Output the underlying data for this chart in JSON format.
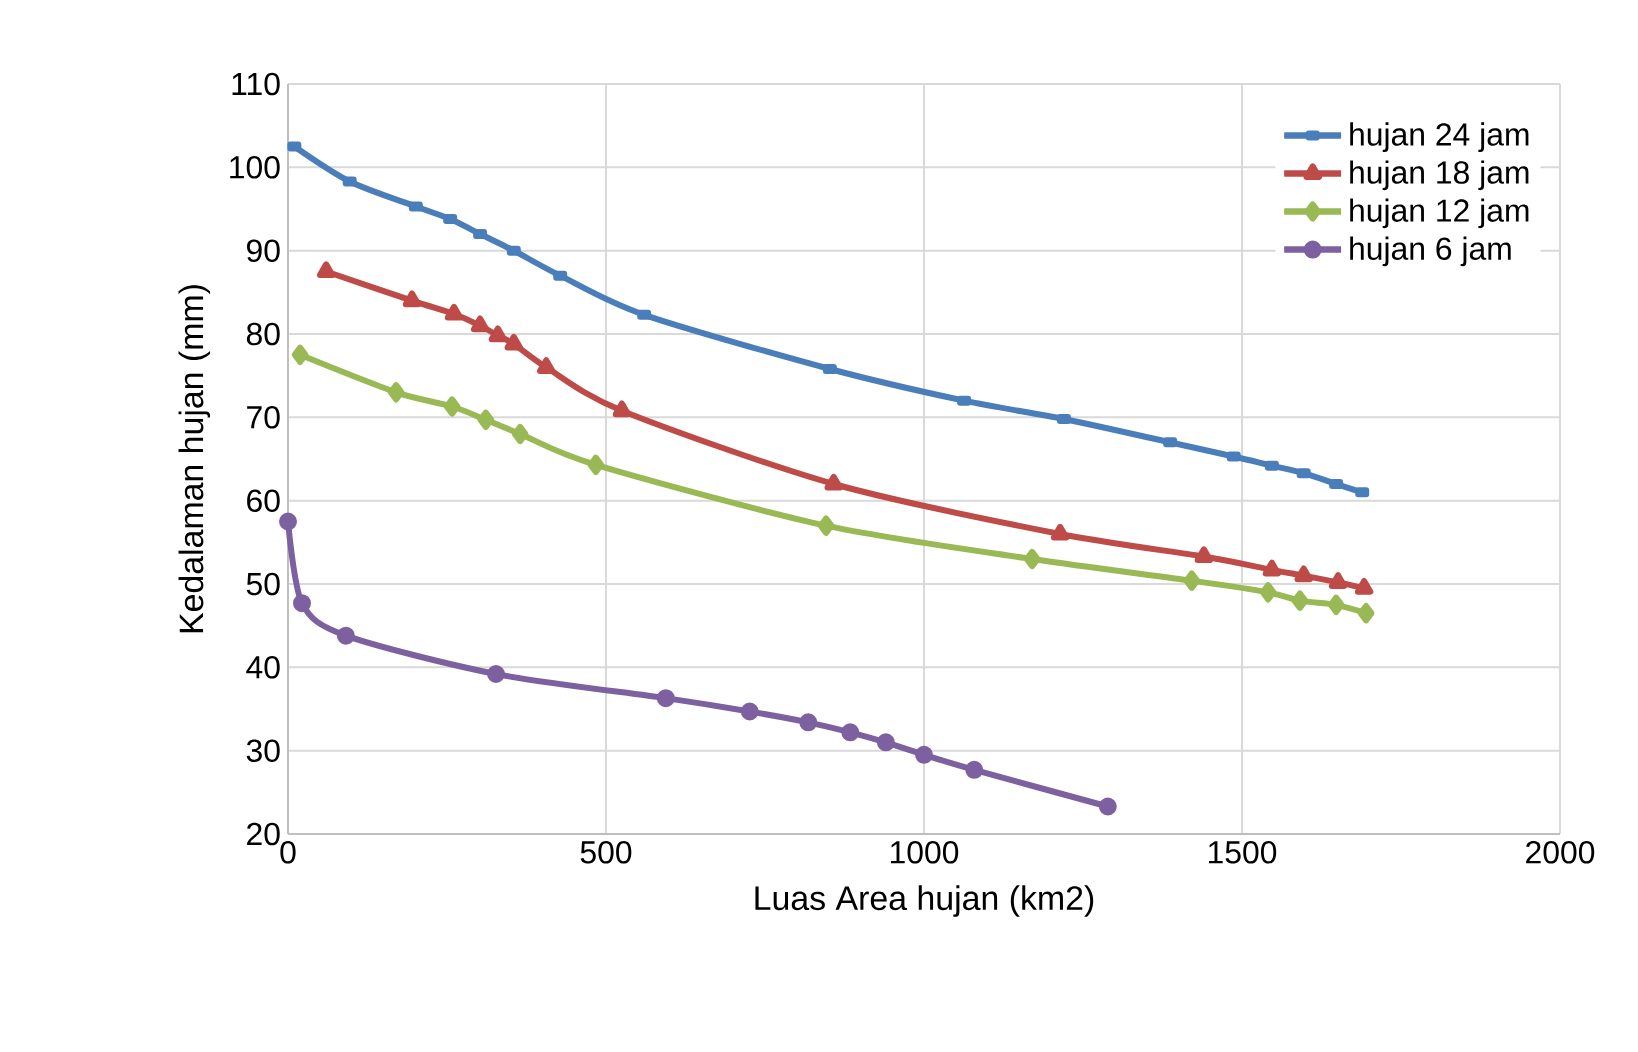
{
  "chart_data": {
    "type": "line",
    "xlabel": "Luas Area hujan (km2)",
    "ylabel": "Kedalaman hujan (mm)",
    "xlim": [
      0,
      2000
    ],
    "xticks": [
      0,
      500,
      1000,
      1500,
      2000
    ],
    "ylim": [
      20,
      110
    ],
    "yticks": [
      20,
      30,
      40,
      50,
      60,
      70,
      80,
      90,
      100,
      110
    ],
    "grid": true,
    "legend": "top right",
    "series": [
      {
        "name": "hujan 24 jam",
        "color": "#4a7ebb",
        "marker": "square",
        "x": [
          10,
          97,
          201,
          255,
          302,
          355,
          428,
          560,
          852,
          1063,
          1220,
          1387,
          1487,
          1547,
          1597,
          1648,
          1689
        ],
        "values": [
          102.5,
          98.3,
          95.3,
          93.8,
          92,
          90,
          87,
          82.3,
          75.8,
          72,
          69.8,
          67,
          65.3,
          64.2,
          63.3,
          62,
          61
        ]
      },
      {
        "name": "hujan 18 jam",
        "color": "#be4b48",
        "marker": "triangle",
        "x": [
          60,
          195,
          261,
          302,
          330,
          355,
          406,
          525,
          858,
          1214,
          1440,
          1547,
          1597,
          1651,
          1692
        ],
        "values": [
          87.5,
          84,
          82.4,
          81,
          79.8,
          78.8,
          76,
          70.8,
          62,
          56,
          53.3,
          51.7,
          51,
          50.2,
          49.5
        ]
      },
      {
        "name": "hujan 12 jam",
        "color": "#98b954",
        "marker": "diamond",
        "x": [
          19,
          170,
          258,
          311,
          365,
          484,
          846,
          1170,
          1421,
          1541,
          1591,
          1648,
          1695
        ],
        "values": [
          77.5,
          73,
          71.3,
          69.7,
          68,
          64.3,
          57,
          53,
          50.4,
          49,
          48,
          47.5,
          46.5
        ]
      },
      {
        "name": "hujan 6 jam",
        "color": "#7d60a0",
        "marker": "circle",
        "x": [
          0,
          22,
          91,
          327,
          594,
          726,
          818,
          884,
          940,
          1000,
          1079,
          1289
        ],
        "values": [
          57.5,
          47.7,
          43.8,
          39.2,
          36.3,
          34.7,
          33.4,
          32.2,
          31,
          29.5,
          27.7,
          23.3
        ]
      }
    ]
  }
}
